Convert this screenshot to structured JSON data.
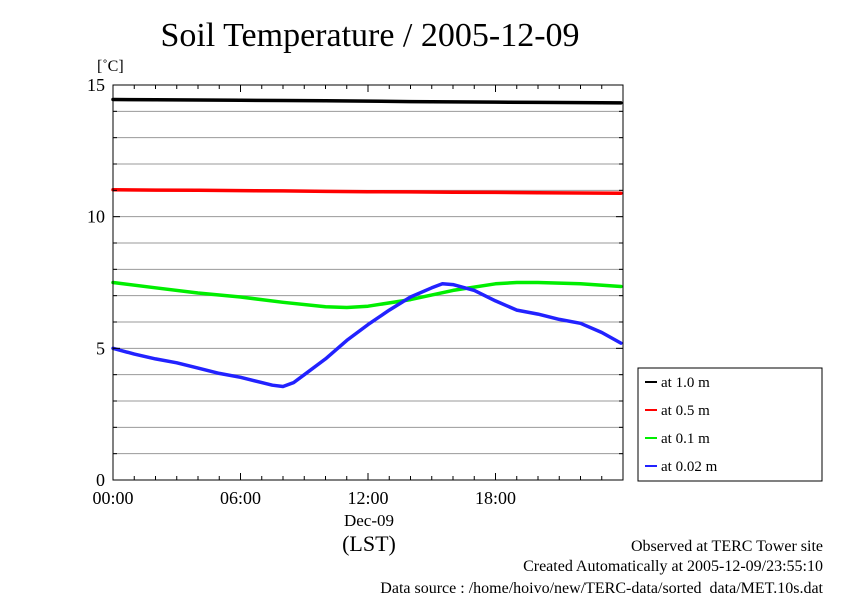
{
  "chart_data": {
    "type": "line",
    "title": "Soil Temperature / 2005-12-09",
    "ylabel": "[˚C]",
    "xlabel": "(LST)",
    "date_label": "Dec-09",
    "ylim": [
      0,
      15
    ],
    "xlim": [
      0,
      24
    ],
    "yticks": [
      0,
      5,
      10,
      15
    ],
    "ytick_labels": [
      "0",
      "5",
      "10",
      "15"
    ],
    "xticks": [
      0,
      6,
      12,
      18
    ],
    "xtick_labels": [
      "00:00",
      "06:00",
      "12:00",
      "18:00"
    ],
    "grid": true,
    "legend_position": "right",
    "series": [
      {
        "name": "at 1.0 m",
        "color": "#000000",
        "x": [
          0,
          2,
          4,
          6,
          8,
          10,
          12,
          14,
          16,
          18,
          20,
          22,
          23.9
        ],
        "y": [
          14.45,
          14.44,
          14.43,
          14.42,
          14.41,
          14.4,
          14.39,
          14.37,
          14.36,
          14.35,
          14.34,
          14.33,
          14.32
        ]
      },
      {
        "name": "at 0.5 m",
        "color": "#ff0000",
        "x": [
          0,
          2,
          4,
          6,
          8,
          10,
          12,
          14,
          16,
          18,
          20,
          22,
          23.9
        ],
        "y": [
          11.02,
          11.01,
          11.0,
          10.99,
          10.98,
          10.96,
          10.95,
          10.94,
          10.93,
          10.92,
          10.91,
          10.9,
          10.89
        ]
      },
      {
        "name": "at 0.1 m",
        "color": "#00ee00",
        "x": [
          0,
          2,
          4,
          6,
          8,
          10,
          11,
          12,
          14,
          16,
          18,
          19,
          20,
          22,
          23.9
        ],
        "y": [
          7.5,
          7.3,
          7.1,
          6.95,
          6.75,
          6.58,
          6.55,
          6.6,
          6.85,
          7.2,
          7.45,
          7.5,
          7.5,
          7.45,
          7.35
        ]
      },
      {
        "name": "at 0.02 m",
        "color": "#2222ff",
        "x": [
          0,
          1,
          2,
          3,
          4,
          5,
          6,
          7,
          7.5,
          8,
          8.5,
          9,
          10,
          11,
          12,
          13,
          14,
          15,
          15.5,
          16,
          17,
          18,
          19,
          20,
          21,
          22,
          23,
          23.9
        ],
        "y": [
          5.0,
          4.78,
          4.6,
          4.45,
          4.25,
          4.05,
          3.9,
          3.7,
          3.6,
          3.55,
          3.7,
          4.0,
          4.6,
          5.3,
          5.9,
          6.45,
          6.95,
          7.3,
          7.45,
          7.42,
          7.2,
          6.8,
          6.45,
          6.3,
          6.1,
          5.95,
          5.6,
          5.2
        ]
      }
    ]
  },
  "footer": {
    "observed": "Observed at TERC Tower site",
    "created": "Created Automatically at 2005-12-09/23:55:10",
    "source": "Data source : /home/hoivo/new/TERC-data/sorted  data/MET.10s.dat"
  }
}
